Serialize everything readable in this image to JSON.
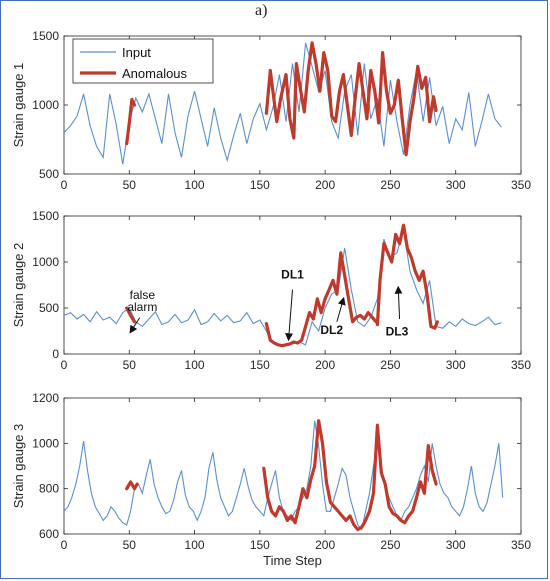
{
  "panel_label": "a)",
  "chart_data": [
    {
      "type": "line",
      "ylabel": "Strain gauge 1",
      "xlabel": "",
      "xlim": [
        0,
        350
      ],
      "ylim": [
        500,
        1500
      ],
      "xticks": [
        "0",
        "50",
        "100",
        "150",
        "200",
        "250",
        "300",
        "350"
      ],
      "yticks": [
        "500",
        "1000",
        "1500"
      ],
      "legend": {
        "position": "top-left",
        "entries": [
          "Input",
          "Anomalous"
        ]
      },
      "series": [
        {
          "name": "Input",
          "color": "#5b8fd1",
          "x": [
            0,
            5,
            10,
            15,
            20,
            25,
            30,
            35,
            40,
            45,
            50,
            55,
            60,
            65,
            70,
            75,
            80,
            85,
            90,
            95,
            100,
            105,
            110,
            115,
            120,
            125,
            130,
            135,
            140,
            145,
            150,
            155,
            160,
            165,
            170,
            175,
            180,
            185,
            190,
            195,
            200,
            205,
            210,
            215,
            220,
            225,
            230,
            235,
            240,
            245,
            250,
            255,
            260,
            265,
            270,
            275,
            280,
            285,
            290,
            295,
            300,
            305,
            310,
            315,
            320,
            325,
            330,
            335
          ],
          "y": [
            800,
            850,
            920,
            1080,
            850,
            700,
            620,
            1080,
            860,
            570,
            880,
            1050,
            950,
            1080,
            900,
            720,
            1080,
            800,
            620,
            920,
            1100,
            900,
            700,
            980,
            760,
            600,
            780,
            940,
            720,
            900,
            1010,
            820,
            980,
            1220,
            880,
            1300,
            950,
            1450,
            1280,
            1100,
            1250,
            880,
            760,
            1100,
            1220,
            780,
            1300,
            900,
            1050,
            700,
            1180,
            880,
            640,
            1000,
            1250,
            880,
            1200,
            850,
            990,
            720,
            900,
            820,
            1090,
            700,
            880,
            1080,
            900,
            840
          ]
        },
        {
          "name": "Anomalous",
          "color": "#c0392b",
          "segments": [
            {
              "x": [
                48,
                50,
                52,
                54
              ],
              "y": [
                720,
                870,
                1040,
                1000
              ]
            },
            {
              "x": [
                155,
                158,
                160,
                163,
                166,
                170,
                173,
                176,
                178,
                181,
                184,
                187,
                190,
                193,
                196,
                199,
                202,
                205,
                208,
                211,
                214,
                217,
                220,
                223,
                226,
                229,
                232,
                235,
                238,
                241,
                244,
                247,
                250,
                253,
                256,
                259,
                262,
                265,
                268,
                271,
                274,
                277,
                280,
                283,
                285
              ],
              "y": [
                940,
                1250,
                1100,
                880,
                1050,
                1220,
                900,
                760,
                1300,
                1120,
                950,
                1250,
                1450,
                1300,
                1100,
                1380,
                1250,
                920,
                880,
                1100,
                1220,
                1000,
                780,
                1050,
                1300,
                1100,
                900,
                1250,
                1100,
                870,
                1380,
                1100,
                940,
                1000,
                1180,
                900,
                640,
                880,
                1050,
                1280,
                1120,
                1200,
                880,
                1060,
                960
              ]
            }
          ]
        }
      ]
    },
    {
      "type": "line",
      "ylabel": "Strain gauge 2",
      "xlabel": "",
      "xlim": [
        0,
        350
      ],
      "ylim": [
        0,
        1500
      ],
      "xticks": [
        "0",
        "50",
        "100",
        "150",
        "200",
        "250",
        "300",
        "350"
      ],
      "yticks": [
        "0",
        "500",
        "1000",
        "1500"
      ],
      "annotations": [
        {
          "text": "false",
          "x": 60,
          "y": 600
        },
        {
          "text": "alarm",
          "x": 60,
          "y": 470
        },
        {
          "text": "DL1",
          "x": 175,
          "y": 820
        },
        {
          "text": "DL2",
          "x": 205,
          "y": 220
        },
        {
          "text": "DL3",
          "x": 255,
          "y": 200
        }
      ],
      "series": [
        {
          "name": "Input",
          "color": "#5b8fd1",
          "x": [
            0,
            5,
            10,
            15,
            20,
            25,
            30,
            35,
            40,
            45,
            50,
            55,
            60,
            65,
            70,
            75,
            80,
            85,
            90,
            95,
            100,
            105,
            110,
            115,
            120,
            125,
            130,
            135,
            140,
            145,
            150,
            155,
            160,
            165,
            170,
            175,
            180,
            185,
            190,
            195,
            200,
            205,
            210,
            215,
            220,
            225,
            230,
            235,
            240,
            245,
            250,
            255,
            260,
            265,
            270,
            275,
            280,
            285,
            290,
            295,
            300,
            305,
            310,
            315,
            320,
            325,
            330,
            335
          ],
          "y": [
            420,
            450,
            380,
            430,
            350,
            460,
            370,
            400,
            330,
            450,
            500,
            350,
            300,
            380,
            460,
            320,
            350,
            430,
            340,
            370,
            480,
            320,
            350,
            440,
            360,
            420,
            340,
            360,
            450,
            330,
            370,
            250,
            120,
            100,
            90,
            110,
            130,
            100,
            350,
            250,
            500,
            650,
            700,
            1150,
            700,
            350,
            300,
            400,
            600,
            1250,
            1050,
            1100,
            1350,
            900,
            700,
            550,
            800,
            300,
            280,
            350,
            300,
            380,
            330,
            310,
            350,
            400,
            320,
            340
          ]
        },
        {
          "name": "Anomalous",
          "color": "#c0392b",
          "segments": [
            {
              "x": [
                48,
                51,
                54
              ],
              "y": [
                500,
                420,
                350
              ]
            },
            {
              "x": [
                155,
                158,
                161,
                164,
                167,
                170,
                173,
                176,
                179,
                182,
                185,
                188,
                191,
                194,
                197,
                200,
                203,
                206,
                209,
                212,
                215,
                218,
                221,
                224,
                227,
                230,
                233,
                236,
                239
              ],
              "y": [
                330,
                150,
                120,
                100,
                90,
                100,
                110,
                130,
                120,
                150,
                300,
                450,
                380,
                600,
                450,
                600,
                700,
                800,
                650,
                1100,
                850,
                600,
                350,
                400,
                420,
                380,
                450,
                400,
                350
              ]
            },
            {
              "x": [
                240,
                242,
                245,
                248,
                251,
                254,
                257,
                260,
                263,
                266,
                269,
                272,
                275,
                278,
                281,
                284,
                286
              ],
              "y": [
                320,
                800,
                1200,
                1100,
                1000,
                1300,
                1200,
                1400,
                1150,
                1050,
                900,
                800,
                900,
                650,
                300,
                280,
                350
              ]
            }
          ]
        }
      ]
    },
    {
      "type": "line",
      "ylabel": "Strain gauge 3",
      "xlabel": "Time Step",
      "xlim": [
        0,
        350
      ],
      "ylim": [
        600,
        1200
      ],
      "xticks": [
        "0",
        "50",
        "100",
        "150",
        "200",
        "250",
        "300",
        "350"
      ],
      "yticks": [
        "600",
        "800",
        "1000",
        "1200"
      ],
      "series": [
        {
          "name": "Input",
          "color": "#5b8fd1",
          "x": [
            0,
            3,
            6,
            9,
            12,
            15,
            18,
            21,
            24,
            27,
            30,
            33,
            36,
            39,
            42,
            45,
            48,
            51,
            54,
            57,
            60,
            63,
            66,
            69,
            72,
            75,
            78,
            81,
            84,
            87,
            90,
            93,
            96,
            99,
            102,
            105,
            108,
            111,
            114,
            117,
            120,
            123,
            126,
            129,
            132,
            135,
            138,
            141,
            144,
            147,
            150,
            153,
            156,
            159,
            162,
            165,
            168,
            171,
            174,
            177,
            180,
            183,
            186,
            189,
            192,
            195,
            198,
            201,
            204,
            207,
            210,
            213,
            216,
            219,
            222,
            225,
            228,
            231,
            234,
            237,
            240,
            243,
            246,
            249,
            252,
            255,
            258,
            261,
            264,
            267,
            270,
            273,
            276,
            279,
            282,
            285,
            288,
            291,
            294,
            297,
            300,
            303,
            306,
            309,
            312,
            315,
            318,
            321,
            324,
            327,
            330,
            333,
            336
          ],
          "y": [
            700,
            720,
            760,
            820,
            900,
            1010,
            880,
            780,
            720,
            690,
            660,
            680,
            720,
            700,
            670,
            650,
            640,
            700,
            800,
            820,
            780,
            860,
            930,
            820,
            760,
            720,
            690,
            700,
            750,
            830,
            880,
            770,
            720,
            700,
            660,
            700,
            760,
            890,
            960,
            840,
            760,
            720,
            680,
            700,
            760,
            820,
            890,
            810,
            750,
            720,
            700,
            680,
            760,
            820,
            880,
            760,
            700,
            680,
            660,
            700,
            720,
            760,
            800,
            900,
            1100,
            990,
            820,
            700,
            700,
            760,
            820,
            890,
            860,
            760,
            700,
            640,
            620,
            700,
            780,
            900,
            1000,
            900,
            800,
            760,
            720,
            680,
            660,
            700,
            720,
            760,
            800,
            860,
            900,
            830,
            1000,
            900,
            820,
            780,
            760,
            720,
            700,
            680,
            720,
            800,
            900,
            780,
            720,
            700,
            740,
            820,
            900,
            1000,
            760
          ]
        },
        {
          "name": "Anomalous",
          "color": "#c0392b",
          "segments": [
            {
              "x": [
                48,
                51,
                54,
                56
              ],
              "y": [
                800,
                830,
                800,
                820
              ]
            },
            {
              "x": [
                153,
                156,
                159,
                162,
                165,
                168,
                171,
                174,
                177,
                180,
                183,
                186,
                189,
                192,
                195,
                198,
                201,
                204,
                207,
                210,
                213,
                216,
                219,
                222,
                225,
                228,
                231,
                234,
                237,
                240,
                243,
                246,
                249,
                252,
                255,
                258,
                261,
                264,
                267,
                270,
                273,
                276,
                279,
                282,
                285
              ],
              "y": [
                890,
                760,
                700,
                680,
                720,
                700,
                660,
                680,
                650,
                720,
                800,
                760,
                840,
                900,
                1100,
                1000,
                830,
                740,
                720,
                700,
                680,
                660,
                680,
                640,
                620,
                630,
                660,
                700,
                780,
                1080,
                870,
                820,
                720,
                690,
                680,
                660,
                650,
                680,
                700,
                760,
                830,
                780,
                990,
                880,
                820
              ]
            }
          ]
        }
      ]
    }
  ]
}
